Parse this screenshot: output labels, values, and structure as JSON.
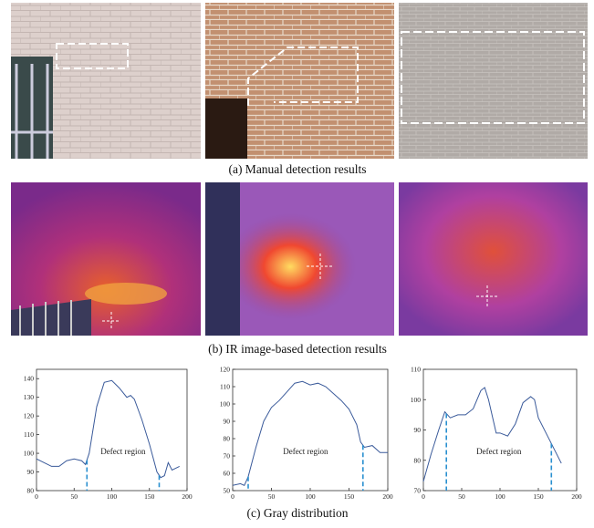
{
  "captions": [
    "(a) Manual detection results",
    "(b) IR image-based detection results",
    "(c) Gray distribution"
  ],
  "chart_data": [
    {
      "type": "line",
      "annotation": "Defect region",
      "color": "#3a5a9a",
      "x": [
        0,
        10,
        20,
        30,
        40,
        50,
        60,
        65,
        70,
        80,
        90,
        100,
        110,
        120,
        125,
        130,
        140,
        150,
        160,
        165,
        170,
        175,
        180,
        190
      ],
      "values": [
        97,
        95,
        93,
        93,
        96,
        97,
        96,
        94,
        100,
        125,
        138,
        139,
        135,
        130,
        131,
        129,
        118,
        105,
        90,
        87,
        88,
        95,
        91,
        93
      ],
      "markers": [
        67,
        163
      ],
      "xlim": [
        0,
        200
      ],
      "xticks": [
        0,
        50,
        100,
        150,
        200
      ],
      "ylim": [
        80,
        145
      ],
      "yticks": [
        80,
        90,
        100,
        110,
        120,
        130,
        140
      ]
    },
    {
      "type": "line",
      "annotation": "Defect region",
      "color": "#3a5a9a",
      "x": [
        0,
        10,
        15,
        20,
        30,
        40,
        50,
        60,
        70,
        80,
        90,
        100,
        110,
        120,
        130,
        140,
        150,
        160,
        165,
        170,
        180,
        190,
        200
      ],
      "values": [
        53,
        54,
        53,
        58,
        75,
        90,
        98,
        102,
        107,
        112,
        113,
        111,
        112,
        110,
        106,
        102,
        97,
        88,
        78,
        75,
        76,
        72,
        72
      ],
      "markers": [
        20,
        168
      ],
      "xlim": [
        0,
        200
      ],
      "xticks": [
        0,
        50,
        100,
        150,
        200
      ],
      "ylim": [
        50,
        120
      ],
      "yticks": [
        50,
        60,
        70,
        80,
        90,
        100,
        110,
        120
      ]
    },
    {
      "type": "line",
      "annotation": "Defect region",
      "color": "#3a5a9a",
      "x": [
        0,
        10,
        20,
        28,
        35,
        45,
        55,
        65,
        75,
        80,
        85,
        95,
        100,
        110,
        120,
        130,
        140,
        145,
        150,
        160,
        170,
        180
      ],
      "values": [
        73,
        82,
        90,
        96,
        94,
        95,
        95,
        97,
        103,
        104,
        100,
        89,
        89,
        88,
        92,
        99,
        101,
        100,
        94,
        89,
        84,
        79
      ],
      "markers": [
        30,
        167
      ],
      "xlim": [
        0,
        200
      ],
      "xticks": [
        0,
        50,
        100,
        150,
        200
      ],
      "ylim": [
        70,
        110
      ],
      "yticks": [
        70,
        80,
        90,
        100,
        110
      ]
    }
  ]
}
